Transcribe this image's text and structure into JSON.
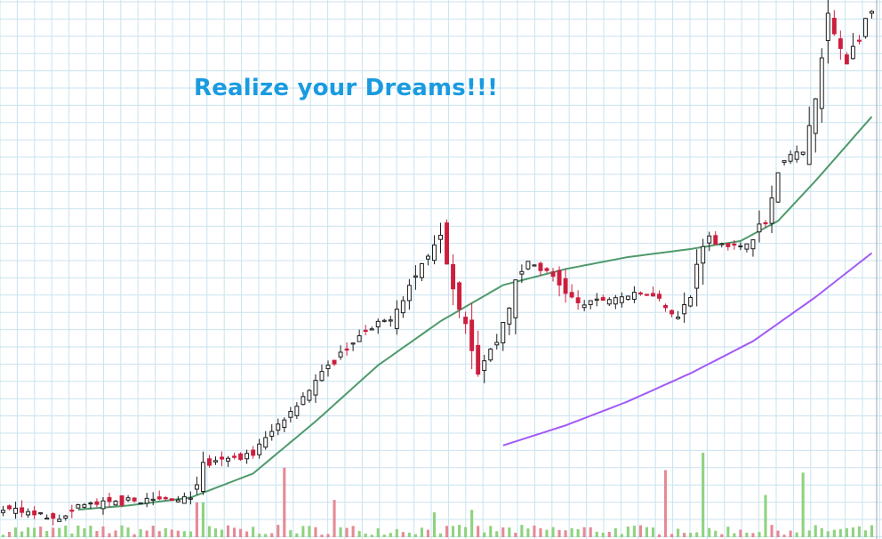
{
  "headline": "Realize your Dreams!!!",
  "colors": {
    "headline": "#1a9be0",
    "grid": "#c9e3ef",
    "up_candle": "#1a1a1a",
    "down_candle": "#cc1f3f",
    "ma_fast": "#4f9a6c",
    "ma_slow": "#a259f7",
    "volume_up": "#8fd27f",
    "volume_down": "#e58a96"
  },
  "chart_data": {
    "type": "candlestick",
    "title": "",
    "xlabel": "",
    "ylabel": "",
    "grid": true,
    "legend": "none",
    "bars": 140,
    "price_range": [
      0,
      100
    ],
    "volume_range": [
      0,
      100
    ],
    "price_path": [
      [
        0,
        6
      ],
      [
        10,
        4
      ],
      [
        12,
        7
      ],
      [
        20,
        8
      ],
      [
        30,
        9
      ],
      [
        32,
        17
      ],
      [
        40,
        20
      ],
      [
        45,
        29
      ],
      [
        50,
        38
      ],
      [
        56,
        48
      ],
      [
        62,
        54
      ],
      [
        67,
        67
      ],
      [
        70,
        76
      ],
      [
        72,
        62
      ],
      [
        74,
        53
      ],
      [
        76,
        41
      ],
      [
        79,
        48
      ],
      [
        82,
        62
      ],
      [
        84,
        68
      ],
      [
        88,
        64
      ],
      [
        92,
        57
      ],
      [
        98,
        59
      ],
      [
        104,
        60
      ],
      [
        108,
        54
      ],
      [
        110,
        59
      ],
      [
        112,
        74
      ],
      [
        118,
        71
      ],
      [
        122,
        78
      ],
      [
        125,
        94
      ],
      [
        128,
        95
      ],
      [
        130,
        108
      ],
      [
        132,
        128
      ],
      [
        135,
        118
      ],
      [
        139,
        130
      ]
    ],
    "ma_fast": [
      [
        12,
        6
      ],
      [
        20,
        7
      ],
      [
        30,
        9
      ],
      [
        40,
        15
      ],
      [
        50,
        28
      ],
      [
        60,
        42
      ],
      [
        70,
        53
      ],
      [
        80,
        62
      ],
      [
        90,
        66
      ],
      [
        100,
        69
      ],
      [
        110,
        71
      ],
      [
        118,
        73
      ],
      [
        124,
        78
      ],
      [
        130,
        88
      ],
      [
        139,
        104
      ]
    ],
    "ma_slow": [
      [
        80,
        22
      ],
      [
        90,
        27
      ],
      [
        100,
        33
      ],
      [
        110,
        40
      ],
      [
        120,
        48
      ],
      [
        130,
        59
      ],
      [
        139,
        70
      ]
    ],
    "volume_spikes": [
      [
        45,
        28
      ],
      [
        31,
        14
      ],
      [
        32,
        14
      ],
      [
        106,
        27
      ],
      [
        112,
        34
      ],
      [
        122,
        17
      ],
      [
        128,
        26
      ],
      [
        53,
        15
      ],
      [
        75,
        11
      ],
      [
        69,
        10
      ]
    ]
  }
}
